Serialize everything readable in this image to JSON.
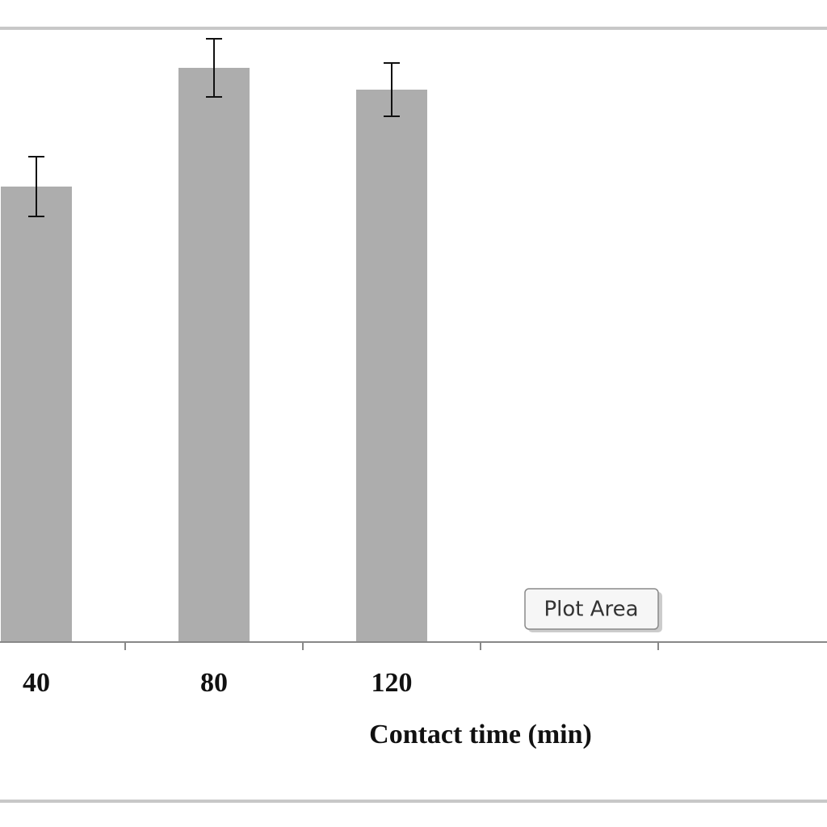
{
  "chart_data": {
    "type": "bar",
    "x_label": "Contact time (min)",
    "categories": [
      40,
      80,
      120,
      null,
      null
    ],
    "values": [
      564,
      711,
      684,
      null,
      null
    ],
    "errors": [
      37,
      36,
      33,
      null,
      null
    ],
    "color": "#adadad",
    "ylim": [
      0,
      760
    ],
    "tooltip": "Plot Area"
  }
}
